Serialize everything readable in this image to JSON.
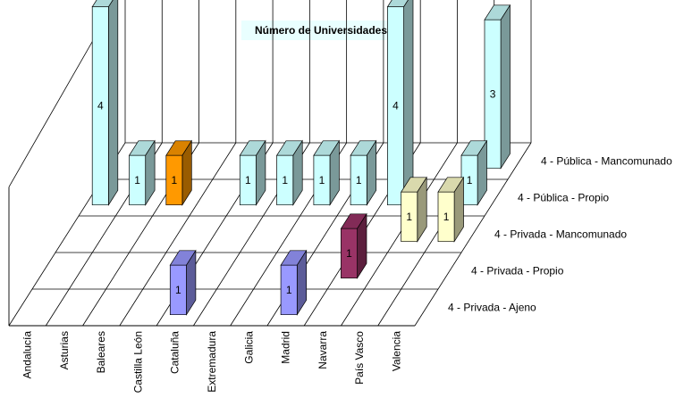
{
  "chart_data": {
    "type": "bar",
    "subtype": "3d-column",
    "title": "Número de Universidades",
    "categories": [
      "Andalucía",
      "Asturias",
      "Baleares",
      "Castilla León",
      "Cataluña",
      "Extremadura",
      "Galicia",
      "Madrid",
      "Navarra",
      "País Vasco",
      "Valencia"
    ],
    "series": [
      {
        "name": "4 - Privada - Ajeno",
        "color": "#9999ff",
        "values": [
          null,
          null,
          null,
          null,
          1,
          null,
          null,
          1,
          null,
          null,
          null
        ]
      },
      {
        "name": "4 - Privada - Propio",
        "color": "#993366",
        "values": [
          null,
          null,
          null,
          null,
          null,
          null,
          null,
          null,
          1,
          null,
          null
        ]
      },
      {
        "name": "4 - Privada - Mancomunado",
        "color": "#ffffcc",
        "values": [
          null,
          null,
          null,
          null,
          null,
          null,
          null,
          null,
          null,
          1,
          1
        ]
      },
      {
        "name": "4 - Pública - Propio",
        "color": "#ccffff",
        "values": [
          4,
          1,
          null,
          null,
          1,
          1,
          1,
          1,
          4,
          null,
          1
        ]
      },
      {
        "name": "4 - Pública - Mancomunado",
        "color": "#ccffff",
        "values": [
          null,
          null,
          null,
          null,
          null,
          null,
          null,
          null,
          null,
          null,
          3
        ]
      }
    ],
    "special_bars": [
      {
        "series": "4 - Pública - Propio",
        "category": "Baleares",
        "value": 1,
        "color": "#ff9900"
      }
    ],
    "grid": true,
    "legend": "none"
  }
}
